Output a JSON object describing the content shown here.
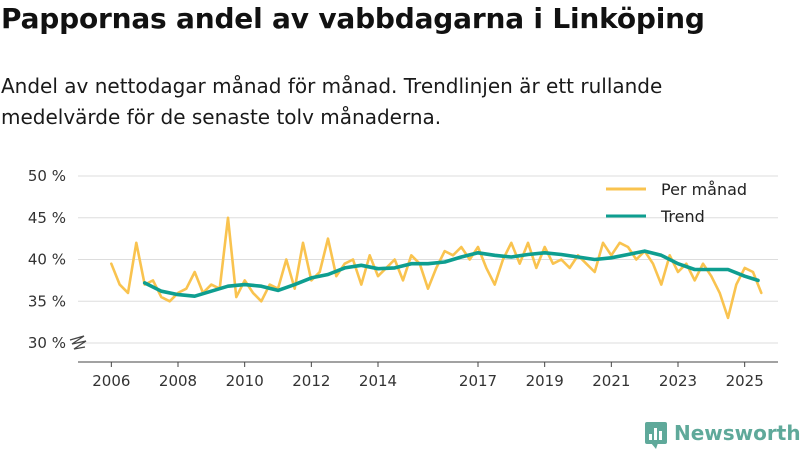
{
  "header": {
    "title": "Pappornas andel av vabbdagarna i Linköping",
    "subtitle": "Andel av nettodagar månad för månad. Trendlinjen är ett rullande medelvärde för de senaste tolv månaderna."
  },
  "brand": {
    "name": "Newsworthy",
    "color": "#5fa99a"
  },
  "chart_data": {
    "type": "line",
    "title": "Pappornas andel av vabbdagarna i Linköping",
    "subtitle": "Andel av nettodagar månad för månad. Trendlinjen är ett rullande medelvärde för de senaste tolv månaderna.",
    "xlabel": "",
    "ylabel": "",
    "ylim": [
      30,
      50
    ],
    "axis_break": true,
    "y_ticks": [
      30,
      35,
      40,
      45,
      50
    ],
    "y_tick_labels": [
      "30 %",
      "35 %",
      "40 %",
      "45 %",
      "50 %"
    ],
    "x_ticks": [
      2006,
      2008,
      2010,
      2012,
      2014,
      2017,
      2019,
      2021,
      2023,
      2025
    ],
    "x_tick_labels": [
      "2006",
      "2008",
      "2010",
      "2012",
      "2014",
      "2017",
      "2019",
      "2021",
      "2023",
      "2025"
    ],
    "grid": true,
    "legend_position": "top-right",
    "series": [
      {
        "name": "Per månad",
        "color": "#f9c34f",
        "x": [
          2006.0,
          2006.25,
          2006.5,
          2006.75,
          2007.0,
          2007.25,
          2007.5,
          2007.75,
          2008.0,
          2008.25,
          2008.5,
          2008.75,
          2009.0,
          2009.25,
          2009.5,
          2009.75,
          2010.0,
          2010.25,
          2010.5,
          2010.75,
          2011.0,
          2011.25,
          2011.5,
          2011.75,
          2012.0,
          2012.25,
          2012.5,
          2012.75,
          2013.0,
          2013.25,
          2013.5,
          2013.75,
          2014.0,
          2014.25,
          2014.5,
          2014.75,
          2015.0,
          2015.25,
          2015.5,
          2015.75,
          2016.0,
          2016.25,
          2016.5,
          2016.75,
          2017.0,
          2017.25,
          2017.5,
          2017.75,
          2018.0,
          2018.25,
          2018.5,
          2018.75,
          2019.0,
          2019.25,
          2019.5,
          2019.75,
          2020.0,
          2020.25,
          2020.5,
          2020.75,
          2021.0,
          2021.25,
          2021.5,
          2021.75,
          2022.0,
          2022.25,
          2022.5,
          2022.75,
          2023.0,
          2023.25,
          2023.5,
          2023.75,
          2024.0,
          2024.25,
          2024.5,
          2024.75,
          2025.0,
          2025.25,
          2025.5
        ],
        "values": [
          39.5,
          37.0,
          36.0,
          42.0,
          37.0,
          37.5,
          35.5,
          35.0,
          36.0,
          36.5,
          38.5,
          36.0,
          37.0,
          36.5,
          45.0,
          35.5,
          37.5,
          36.0,
          35.0,
          37.0,
          36.5,
          40.0,
          36.5,
          42.0,
          37.5,
          38.5,
          42.5,
          38.0,
          39.5,
          40.0,
          37.0,
          40.5,
          38.0,
          39.0,
          40.0,
          37.5,
          40.5,
          39.5,
          36.5,
          39.0,
          41.0,
          40.5,
          41.5,
          40.0,
          41.5,
          39.0,
          37.0,
          40.0,
          42.0,
          39.5,
          42.0,
          39.0,
          41.5,
          39.5,
          40.0,
          39.0,
          40.5,
          39.5,
          38.5,
          42.0,
          40.5,
          42.0,
          41.5,
          40.0,
          41.0,
          39.5,
          37.0,
          40.5,
          38.5,
          39.5,
          37.5,
          39.5,
          38.0,
          36.0,
          33.0,
          37.0,
          39.0,
          38.5,
          36.0
        ]
      },
      {
        "name": "Trend",
        "color": "#0e9e90",
        "x": [
          2007.0,
          2007.5,
          2008.0,
          2008.5,
          2009.0,
          2009.5,
          2010.0,
          2010.5,
          2011.0,
          2011.5,
          2012.0,
          2012.5,
          2013.0,
          2013.5,
          2014.0,
          2014.5,
          2015.0,
          2015.5,
          2016.0,
          2016.5,
          2017.0,
          2017.5,
          2018.0,
          2018.5,
          2019.0,
          2019.5,
          2020.0,
          2020.5,
          2021.0,
          2021.5,
          2022.0,
          2022.5,
          2023.0,
          2023.5,
          2024.0,
          2024.5,
          2025.0,
          2025.4
        ],
        "values": [
          37.2,
          36.2,
          35.8,
          35.6,
          36.2,
          36.8,
          37.0,
          36.8,
          36.3,
          37.0,
          37.8,
          38.2,
          39.0,
          39.3,
          38.9,
          39.0,
          39.5,
          39.5,
          39.7,
          40.3,
          40.8,
          40.5,
          40.3,
          40.6,
          40.8,
          40.6,
          40.3,
          40.0,
          40.2,
          40.6,
          41.0,
          40.5,
          39.5,
          38.8,
          38.8,
          38.8,
          38.0,
          37.5
        ]
      }
    ]
  }
}
